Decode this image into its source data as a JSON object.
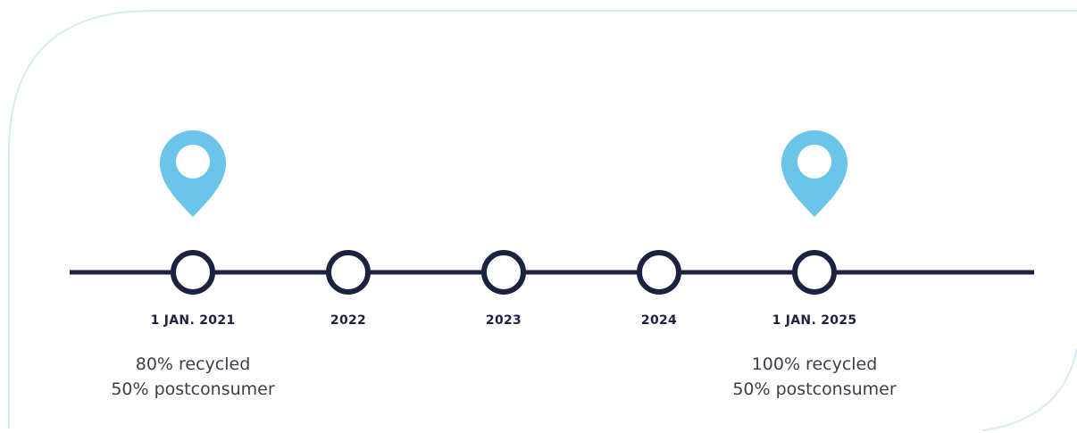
{
  "timeline": {
    "milestones": [
      {
        "label": "1 JAN. 2021",
        "notes": [
          "80% recycled",
          "50% postconsumer"
        ]
      },
      {
        "label": "2022"
      },
      {
        "label": "2023"
      },
      {
        "label": "2024"
      },
      {
        "label": "1 JAN. 2025",
        "notes": [
          "100% recycled",
          "50% postconsumer"
        ]
      }
    ]
  }
}
